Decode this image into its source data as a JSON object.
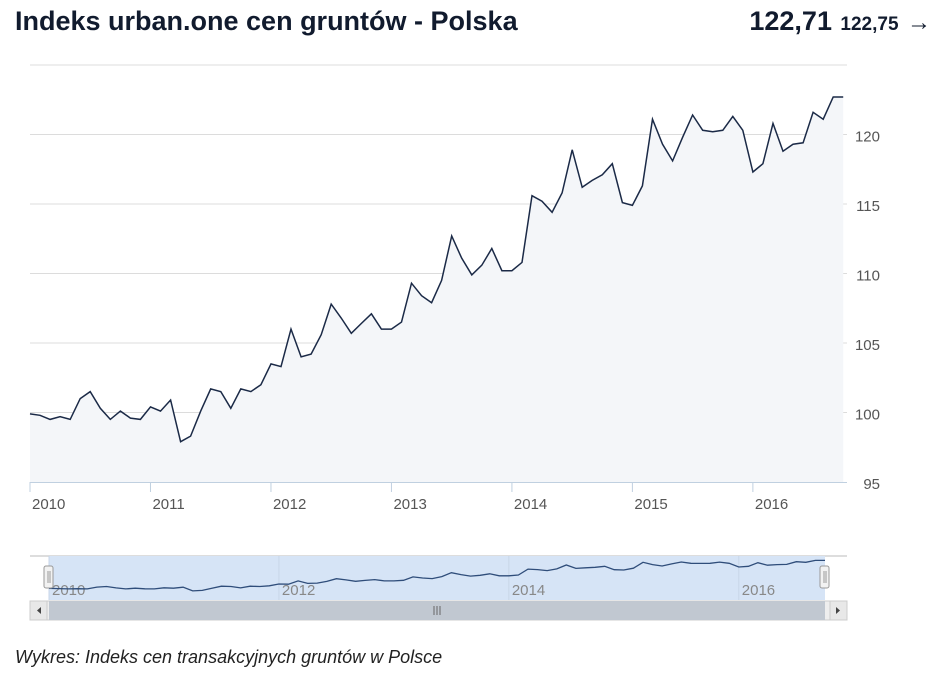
{
  "header": {
    "title": "Indeks urban.one cen gruntów - Polska",
    "current_value": "122,71",
    "previous_value": "122,75",
    "arrow": "→"
  },
  "caption": "Wykres: Indeks cen transakcyjnych gruntów w Polsce",
  "colors": {
    "line": "#1b2a47",
    "area": "#f4f6f9",
    "navigator_fill": "#d6e4f6",
    "navigator_line": "#2f4d7a",
    "scrollbar": "#c1c8d1"
  },
  "chart_data": {
    "type": "area",
    "title": "Indeks urban.one cen gruntów - Polska",
    "start": "2010-01",
    "frequency": "monthly",
    "ylim": [
      95,
      125
    ],
    "yticks": [
      "95",
      "100",
      "105",
      "110",
      "115",
      "120"
    ],
    "xticks": [
      "2010",
      "2011",
      "2012",
      "2013",
      "2014",
      "2015",
      "2016"
    ],
    "navigator_xticks": [
      "2010",
      "2012",
      "2014",
      "2016"
    ],
    "values": [
      99.9,
      99.8,
      99.5,
      99.7,
      99.5,
      101.0,
      101.5,
      100.3,
      99.5,
      100.1,
      99.6,
      99.5,
      100.4,
      100.1,
      100.9,
      97.9,
      98.3,
      100.1,
      101.7,
      101.5,
      100.3,
      101.7,
      101.5,
      102.0,
      103.5,
      103.3,
      106.0,
      104.0,
      104.2,
      105.6,
      107.8,
      106.8,
      105.7,
      106.4,
      107.1,
      106.0,
      106.0,
      106.5,
      109.3,
      108.4,
      107.9,
      109.5,
      112.7,
      111.1,
      109.9,
      110.6,
      111.8,
      110.2,
      110.2,
      110.8,
      115.6,
      115.2,
      114.4,
      115.8,
      118.9,
      116.2,
      116.7,
      117.1,
      117.9,
      115.1,
      114.9,
      116.3,
      121.1,
      119.3,
      118.1,
      119.8,
      121.4,
      120.3,
      120.2,
      120.3,
      121.3,
      120.3,
      117.3,
      117.9,
      120.8,
      118.8,
      119.3,
      119.4,
      121.6,
      121.1,
      122.7,
      122.7
    ]
  }
}
